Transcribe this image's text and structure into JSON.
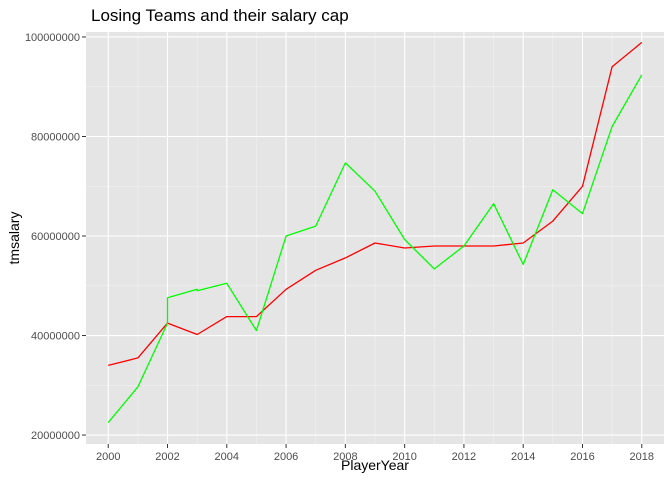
{
  "chart_data": {
    "type": "line",
    "title": "Losing Teams and their salary cap",
    "xlabel": "PlayerYear",
    "ylabel": "tmsalary",
    "xlim": [
      1999.25,
      2018.75
    ],
    "ylim": [
      18200000,
      101000000
    ],
    "x_ticks": [
      2000,
      2002,
      2004,
      2006,
      2008,
      2010,
      2012,
      2014,
      2016,
      2018
    ],
    "x_tick_labels": [
      "2000",
      "2002",
      "2004",
      "2006",
      "2008",
      "2010",
      "2012",
      "2014",
      "2016",
      "2018"
    ],
    "y_ticks": [
      20000000,
      40000000,
      60000000,
      80000000,
      100000000
    ],
    "y_tick_labels": [
      "20000000",
      "40000000",
      "60000000",
      "80000000",
      "100000000"
    ],
    "grid": true,
    "legend": false,
    "background": "#e5e5e5",
    "series": [
      {
        "color": "#ff0000",
        "points": [
          [
            2000,
            34000000
          ],
          [
            2001,
            35500000
          ],
          [
            2002,
            42500000
          ],
          [
            2003,
            40200000
          ],
          [
            2004,
            43800000
          ],
          [
            2005,
            43800000
          ],
          [
            2006,
            49300000
          ],
          [
            2007,
            53100000
          ],
          [
            2008,
            55600000
          ],
          [
            2009,
            58600000
          ],
          [
            2010,
            57600000
          ],
          [
            2011,
            58000000
          ],
          [
            2012,
            58000000
          ],
          [
            2013,
            58000000
          ],
          [
            2014,
            58600000
          ],
          [
            2015,
            63000000
          ],
          [
            2016,
            70000000
          ],
          [
            2017,
            94000000
          ],
          [
            2018,
            98900000
          ]
        ]
      },
      {
        "color": "#00ff00",
        "points": [
          [
            2000,
            22500000
          ],
          [
            2001,
            29700000
          ],
          [
            2002,
            42500000
          ],
          [
            2002,
            47600000
          ],
          [
            2003,
            49300000
          ],
          [
            2003,
            49000000
          ],
          [
            2004,
            50500000
          ],
          [
            2005,
            41000000
          ],
          [
            2006,
            60000000
          ],
          [
            2007,
            62000000
          ],
          [
            2008,
            74700000
          ],
          [
            2009,
            69000000
          ],
          [
            2010,
            59300000
          ],
          [
            2011,
            53400000
          ],
          [
            2012,
            58000000
          ],
          [
            2013,
            66500000
          ],
          [
            2014,
            54300000
          ],
          [
            2015,
            69300000
          ],
          [
            2016,
            64500000
          ],
          [
            2017,
            82000000
          ],
          [
            2018,
            92400000
          ]
        ]
      }
    ]
  }
}
